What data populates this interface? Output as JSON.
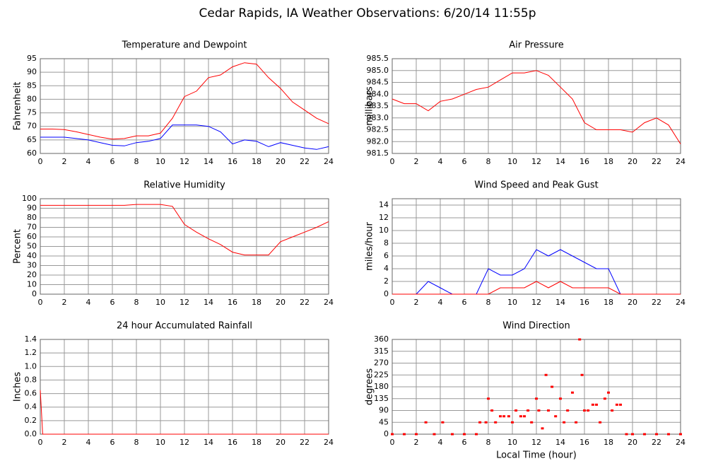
{
  "page_title": "Cedar Rapids, IA Weather Observations: 6/20/14 11:55p",
  "chart_data": [
    {
      "type": "line",
      "title": "Temperature and Dewpoint",
      "ylabel": "Fahrenheit",
      "x": [
        0,
        1,
        2,
        3,
        4,
        5,
        6,
        7,
        8,
        9,
        10,
        11,
        12,
        13,
        14,
        15,
        16,
        17,
        18,
        19,
        20,
        21,
        22,
        23,
        24
      ],
      "series": [
        {
          "name": "Temperature",
          "color": "#ff0000",
          "values": [
            69,
            69,
            68.8,
            68,
            67,
            66,
            65.3,
            65.5,
            66.5,
            66.5,
            67.5,
            73,
            81,
            83,
            88,
            89,
            92,
            93.5,
            93,
            88,
            84,
            79,
            76,
            73,
            71
          ]
        },
        {
          "name": "Dewpoint",
          "color": "#0000ff",
          "values": [
            66,
            66,
            66,
            65.5,
            65,
            64,
            63,
            62.8,
            64,
            64.5,
            65.5,
            70.5,
            70.5,
            70.5,
            70,
            68,
            63.5,
            65,
            64.5,
            62.5,
            64,
            63,
            62,
            61.5,
            62.5
          ]
        }
      ],
      "xlim": [
        0,
        24
      ],
      "xticks": [
        0,
        2,
        4,
        6,
        8,
        10,
        12,
        14,
        16,
        18,
        20,
        22,
        24
      ],
      "ylim": [
        60,
        95
      ],
      "yticks": [
        60,
        65,
        70,
        75,
        80,
        85,
        90,
        95
      ],
      "grid": true
    },
    {
      "type": "line",
      "title": "Air Pressure",
      "ylabel": "millibars",
      "x": [
        0,
        1,
        2,
        3,
        4,
        5,
        6,
        7,
        8,
        9,
        10,
        11,
        12,
        13,
        14,
        15,
        16,
        17,
        18,
        19,
        20,
        21,
        22,
        23,
        24
      ],
      "series": [
        {
          "name": "Pressure",
          "color": "#ff0000",
          "values": [
            983.8,
            983.6,
            983.6,
            983.3,
            983.7,
            983.8,
            984.0,
            984.2,
            984.3,
            984.6,
            984.9,
            984.9,
            985.0,
            984.8,
            984.3,
            983.8,
            982.8,
            982.5,
            982.5,
            982.5,
            982.4,
            982.8,
            983.0,
            982.7,
            981.9
          ]
        }
      ],
      "xlim": [
        0,
        24
      ],
      "xticks": [
        0,
        2,
        4,
        6,
        8,
        10,
        12,
        14,
        16,
        18,
        20,
        22,
        24
      ],
      "ylim": [
        981.5,
        985.5
      ],
      "yticks": [
        981.5,
        {
          "value": 982,
          "label": "982.0"
        },
        982.5,
        {
          "value": 983,
          "label": "983.0"
        },
        983.5,
        {
          "value": 984,
          "label": "984.0"
        },
        984.5,
        {
          "value": 985,
          "label": "985.0"
        },
        985.5
      ],
      "grid": true
    },
    {
      "type": "line",
      "title": "Relative Humidity",
      "ylabel": "Percent",
      "x": [
        0,
        1,
        2,
        3,
        4,
        5,
        6,
        7,
        8,
        9,
        10,
        11,
        12,
        13,
        14,
        15,
        16,
        17,
        18,
        19,
        20,
        21,
        22,
        23,
        24
      ],
      "series": [
        {
          "name": "Humidity",
          "color": "#ff0000",
          "values": [
            93,
            93,
            93,
            93,
            93,
            93,
            93,
            93,
            94,
            94,
            94,
            92,
            73,
            65,
            58,
            52,
            44,
            41,
            41,
            41,
            55,
            60,
            65,
            70,
            76
          ]
        }
      ],
      "xlim": [
        0,
        24
      ],
      "xticks": [
        0,
        2,
        4,
        6,
        8,
        10,
        12,
        14,
        16,
        18,
        20,
        22,
        24
      ],
      "ylim": [
        0,
        100
      ],
      "yticks": [
        0,
        10,
        20,
        30,
        40,
        50,
        60,
        70,
        80,
        90,
        100
      ],
      "grid": true
    },
    {
      "type": "line",
      "title": "Wind Speed and Peak Gust",
      "ylabel": "miles/hour",
      "x": [
        0,
        1,
        2,
        3,
        4,
        5,
        6,
        7,
        8,
        9,
        10,
        11,
        12,
        13,
        14,
        15,
        16,
        17,
        18,
        19,
        20,
        21,
        22,
        23,
        24
      ],
      "series": [
        {
          "name": "Speed",
          "color": "#0000ff",
          "values": [
            0,
            0,
            0,
            2,
            1,
            0,
            0,
            0,
            4,
            3,
            3,
            4,
            7,
            6,
            7,
            6,
            5,
            4,
            4,
            0,
            0,
            0,
            0,
            0,
            0
          ]
        },
        {
          "name": "Gust",
          "color": "#ff0000",
          "values": [
            0,
            0,
            0,
            0,
            0,
            0,
            0,
            0,
            0,
            1,
            1,
            1,
            2,
            1,
            2,
            1,
            1,
            1,
            1,
            0,
            0,
            0,
            0,
            0,
            0
          ]
        }
      ],
      "xlim": [
        0,
        24
      ],
      "xticks": [
        0,
        2,
        4,
        6,
        8,
        10,
        12,
        14,
        16,
        18,
        20,
        22,
        24
      ],
      "ylim": [
        0,
        15
      ],
      "yticks": [
        0,
        2,
        4,
        6,
        8,
        10,
        12,
        14
      ],
      "grid": true
    },
    {
      "type": "line",
      "title": "24 hour Accumulated Rainfall",
      "ylabel": "Inches",
      "x": [
        0,
        0.2,
        24
      ],
      "series": [
        {
          "name": "Rainfall",
          "color": "#ff0000",
          "values": [
            0.65,
            0,
            0
          ]
        }
      ],
      "xlim": [
        0,
        24
      ],
      "xticks": [
        0,
        2,
        4,
        6,
        8,
        10,
        12,
        14,
        16,
        18,
        20,
        22,
        24
      ],
      "ylim": [
        0,
        1.4
      ],
      "yticks": [
        {
          "value": 0,
          "label": "0.0"
        },
        0.2,
        0.4,
        0.6,
        0.8,
        {
          "value": 1,
          "label": "1.0"
        },
        1.2,
        1.4
      ],
      "grid": true
    },
    {
      "type": "scatter",
      "title": "Wind Direction",
      "ylabel": "degrees",
      "xlabel": "Local Time (hour)",
      "x": [
        0,
        1,
        2,
        2.8,
        3.5,
        4.2,
        5,
        6,
        7,
        7.3,
        7.8,
        8,
        8.3,
        8.6,
        9,
        9.3,
        9.7,
        10,
        10.3,
        10.7,
        11,
        11.3,
        11.6,
        12,
        12.2,
        12.5,
        12.8,
        13,
        13.3,
        13.6,
        14,
        14.3,
        14.6,
        15,
        15.3,
        15.6,
        15.8,
        16,
        16.3,
        16.7,
        17,
        17.3,
        17.7,
        18,
        18.3,
        18.7,
        19,
        19.5,
        20,
        21,
        22,
        23,
        24
      ],
      "series": [
        {
          "name": "Direction",
          "color": "#ff0000",
          "values": [
            0,
            0,
            0,
            45,
            0,
            45,
            0,
            0,
            0,
            45,
            45,
            135,
            90,
            45,
            68,
            68,
            68,
            45,
            90,
            68,
            68,
            90,
            45,
            135,
            90,
            22,
            225,
            90,
            180,
            68,
            135,
            45,
            90,
            158,
            45,
            360,
            225,
            90,
            90,
            112,
            112,
            45,
            135,
            158,
            90,
            112,
            112,
            0,
            0,
            0,
            0,
            0,
            0
          ]
        }
      ],
      "xlim": [
        0,
        24
      ],
      "xticks": [
        0,
        2,
        4,
        6,
        8,
        10,
        12,
        14,
        16,
        18,
        20,
        22,
        24
      ],
      "ylim": [
        0,
        360
      ],
      "yticks": [
        0,
        45,
        90,
        135,
        180,
        225,
        270,
        315,
        360
      ],
      "grid": true
    }
  ]
}
